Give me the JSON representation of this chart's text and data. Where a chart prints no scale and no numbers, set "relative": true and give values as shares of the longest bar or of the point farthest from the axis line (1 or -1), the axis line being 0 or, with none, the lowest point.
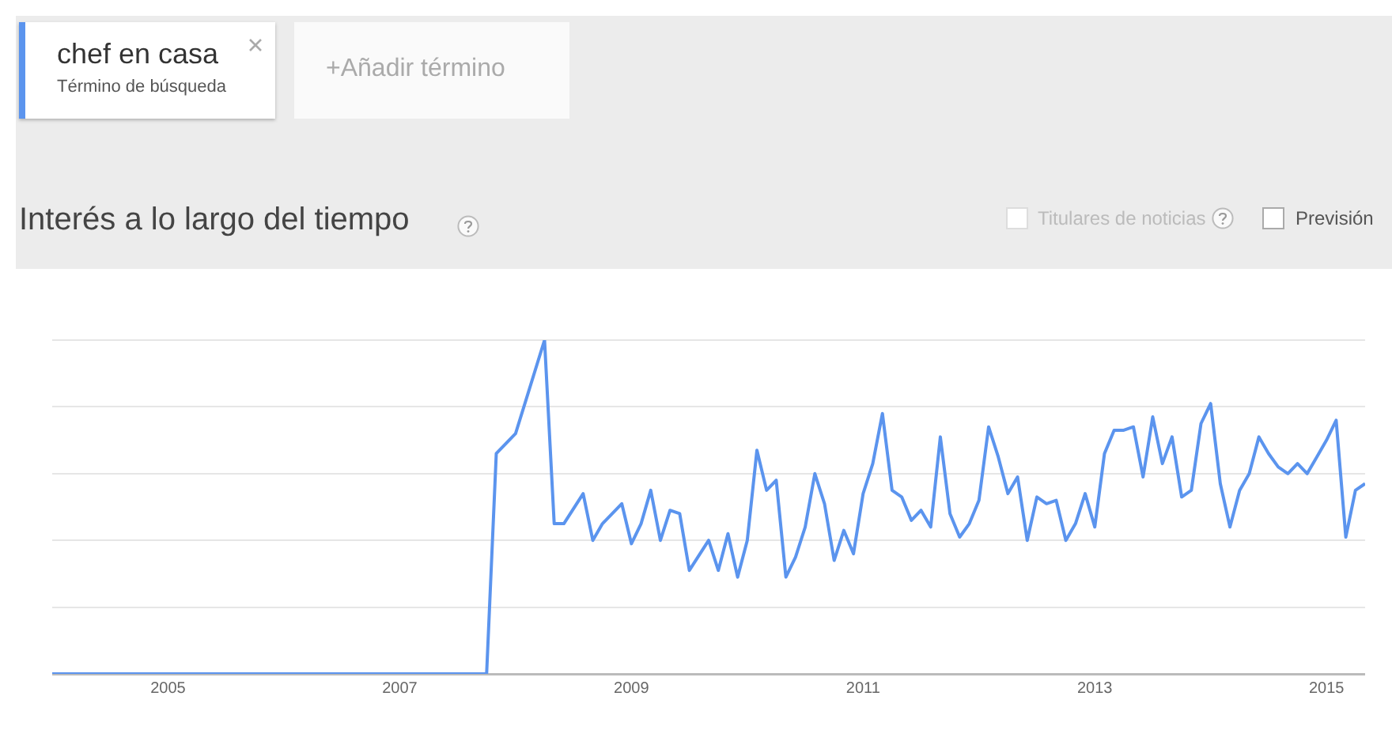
{
  "chart_data": {
    "type": "line",
    "title": "Interés a lo largo del tiempo",
    "relative": true,
    "grid": "y",
    "legend": "top left",
    "marker": "none",
    "line_style": "solid",
    "annotations": [
      "Término de búsqueda",
      "+Añadir término",
      "Titulares de noticias",
      "Previsión"
    ],
    "xlim": [
      "2004-01",
      "2015-05"
    ],
    "xticks": [
      "2005",
      "2007",
      "2009",
      "2011",
      "2013",
      "2015"
    ],
    "series": [
      {
        "name": "chef en casa",
        "color": "#5b94ee",
        "x": [
          "2004-01",
          "2007-10",
          "2007-11",
          "2008-01",
          "2008-04",
          "2008-05",
          "2008-06",
          "2008-08",
          "2008-09",
          "2008-10",
          "2008-12",
          "2009-01",
          "2009-02",
          "2009-03",
          "2009-04",
          "2009-05",
          "2009-06",
          "2009-07",
          "2009-09",
          "2009-10",
          "2009-11",
          "2009-12",
          "2010-01",
          "2010-02",
          "2010-03",
          "2010-04",
          "2010-05",
          "2010-06",
          "2010-07",
          "2010-08",
          "2010-09",
          "2010-10",
          "2010-11",
          "2010-12",
          "2011-01",
          "2011-02",
          "2011-03",
          "2011-04",
          "2011-05",
          "2011-06",
          "2011-07",
          "2011-08",
          "2011-09",
          "2011-10",
          "2011-11",
          "2011-12",
          "2012-01",
          "2012-02",
          "2012-03",
          "2012-04",
          "2012-05",
          "2012-06",
          "2012-07",
          "2012-08",
          "2012-09",
          "2012-10",
          "2012-11",
          "2012-12",
          "2013-01",
          "2013-02",
          "2013-03",
          "2013-04",
          "2013-05",
          "2013-06",
          "2013-07",
          "2013-08",
          "2013-09",
          "2013-10",
          "2013-11",
          "2013-12",
          "2014-01",
          "2014-02",
          "2014-03",
          "2014-04",
          "2014-05",
          "2014-06",
          "2014-07",
          "2014-08",
          "2014-09",
          "2014-10",
          "2014-11",
          "2014-12",
          "2015-01",
          "2015-02",
          "2015-03",
          "2015-04",
          "2015-05"
        ],
        "values": [
          0,
          0,
          0.66,
          0.72,
          1,
          0.45,
          0.45,
          0.54,
          0.4,
          0.45,
          0.51,
          0.39,
          0.45,
          0.55,
          0.4,
          0.49,
          0.48,
          0.31,
          0.4,
          0.31,
          0.42,
          0.29,
          0.4,
          0.67,
          0.55,
          0.58,
          0.29,
          0.35,
          0.44,
          0.6,
          0.51,
          0.34,
          0.43,
          0.36,
          0.54,
          0.63,
          0.78,
          0.55,
          0.53,
          0.46,
          0.49,
          0.44,
          0.71,
          0.48,
          0.41,
          0.45,
          0.52,
          0.74,
          0.65,
          0.54,
          0.59,
          0.4,
          0.53,
          0.51,
          0.52,
          0.4,
          0.45,
          0.54,
          0.44,
          0.66,
          0.73,
          0.73,
          0.74,
          0.59,
          0.77,
          0.63,
          0.71,
          0.53,
          0.55,
          0.75,
          0.81,
          0.57,
          0.44,
          0.55,
          0.6,
          0.71,
          0.66,
          0.62,
          0.6,
          0.63,
          0.6,
          0.65,
          0.7,
          0.76,
          0.41,
          0.55,
          0.57
        ]
      }
    ]
  }
}
